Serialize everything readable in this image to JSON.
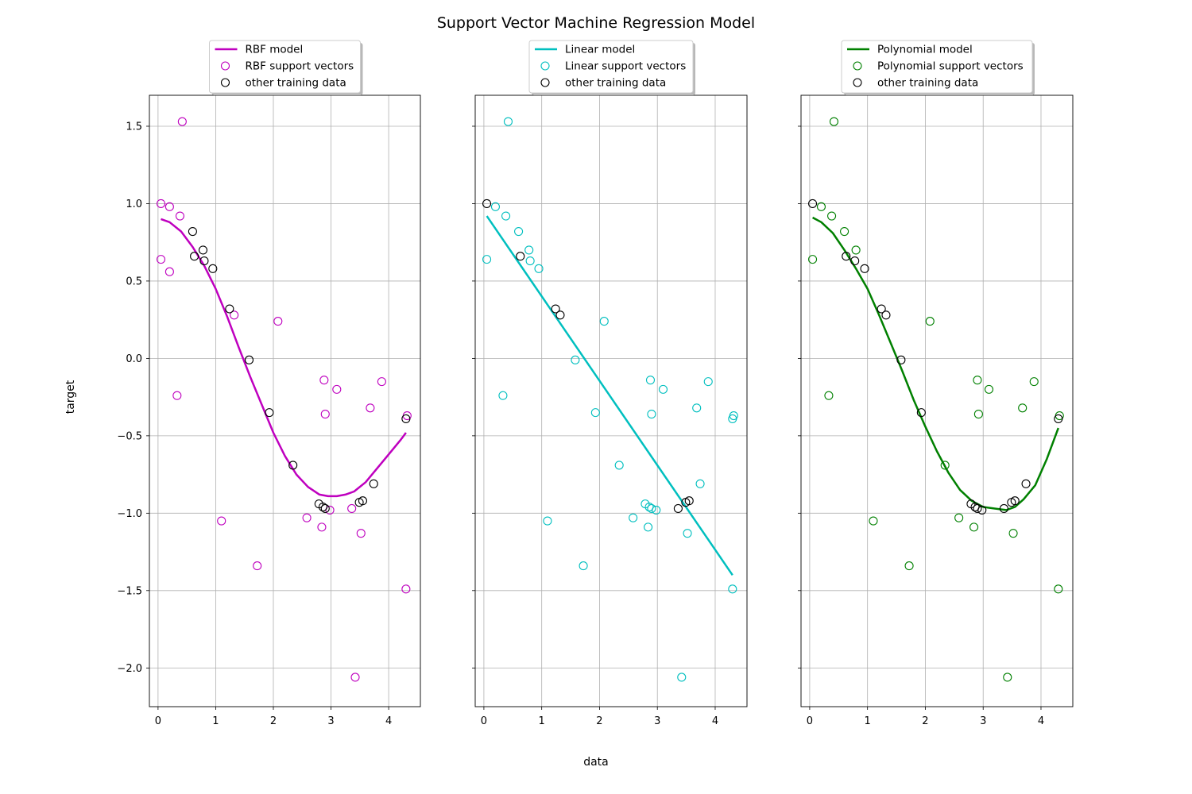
{
  "figure": {
    "title": "Support Vector Machine Regression Model",
    "xlabel": "data",
    "ylabel": "target"
  },
  "colors": {
    "rbf": "#bf00bf",
    "linear": "#00bfbf",
    "poly": "#008000",
    "other": "#000000",
    "grid": "#b0b0b0"
  },
  "chart_data": [
    {
      "type": "scatter",
      "model_color": "#bf00bf",
      "xlim": [
        -0.15,
        4.55
      ],
      "ylim": [
        -2.25,
        1.7
      ],
      "xticks": [
        0,
        1,
        2,
        3,
        4
      ],
      "yticks": [
        -2.0,
        -1.5,
        -1.0,
        -0.5,
        0.0,
        0.5,
        1.0,
        1.5
      ],
      "xtick_labels": [
        "0",
        "1",
        "2",
        "3",
        "4"
      ],
      "ytick_labels": [
        "−2.0",
        "−1.5",
        "−1.0",
        "−0.5",
        "0.0",
        "0.5",
        "1.0",
        "1.5"
      ],
      "show_ytick_labels": true,
      "grid": true,
      "legend_position": "top-center",
      "legend": [
        "RBF model",
        "RBF support vectors",
        "other training data"
      ],
      "model_line": {
        "name": "RBF model",
        "x": [
          0.05,
          0.2,
          0.4,
          0.6,
          0.8,
          1.0,
          1.2,
          1.4,
          1.6,
          1.8,
          2.0,
          2.2,
          2.4,
          2.6,
          2.8,
          2.95,
          3.1,
          3.25,
          3.4,
          3.6,
          3.8,
          4.0,
          4.2,
          4.3
        ],
        "y": [
          0.9,
          0.88,
          0.82,
          0.72,
          0.6,
          0.45,
          0.27,
          0.07,
          -0.12,
          -0.3,
          -0.48,
          -0.63,
          -0.75,
          -0.83,
          -0.88,
          -0.89,
          -0.89,
          -0.88,
          -0.86,
          -0.8,
          -0.71,
          -0.62,
          -0.53,
          -0.48
        ]
      },
      "support_vectors": {
        "x": [
          0.05,
          0.05,
          0.2,
          0.2,
          0.33,
          0.38,
          0.42,
          1.1,
          1.32,
          1.72,
          2.08,
          2.58,
          2.84,
          2.88,
          2.9,
          2.98,
          3.1,
          3.36,
          3.42,
          3.52,
          3.68,
          3.88,
          4.3,
          4.32
        ],
        "y": [
          1.0,
          0.64,
          0.98,
          0.56,
          -0.24,
          0.92,
          1.53,
          -1.05,
          0.28,
          -1.34,
          0.24,
          -1.03,
          -1.09,
          -0.14,
          -0.36,
          -0.98,
          -0.2,
          -0.97,
          -2.06,
          -1.13,
          -0.32,
          -0.15,
          -1.49,
          -0.37
        ]
      },
      "other_data": {
        "x": [
          0.6,
          0.63,
          0.78,
          0.8,
          0.95,
          1.24,
          1.58,
          1.93,
          2.34,
          2.79,
          2.86,
          2.9,
          3.49,
          3.55,
          3.74,
          4.3
        ],
        "y": [
          0.82,
          0.66,
          0.7,
          0.63,
          0.58,
          0.32,
          -0.01,
          -0.35,
          -0.69,
          -0.94,
          -0.96,
          -0.97,
          -0.93,
          -0.92,
          -0.81,
          -0.39
        ]
      }
    },
    {
      "type": "scatter",
      "model_color": "#00bfbf",
      "xlim": [
        -0.15,
        4.55
      ],
      "ylim": [
        -2.25,
        1.7
      ],
      "xticks": [
        0,
        1,
        2,
        3,
        4
      ],
      "yticks": [
        -2.0,
        -1.5,
        -1.0,
        -0.5,
        0.0,
        0.5,
        1.0,
        1.5
      ],
      "xtick_labels": [
        "0",
        "1",
        "2",
        "3",
        "4"
      ],
      "show_ytick_labels": false,
      "grid": true,
      "legend_position": "top-center",
      "legend": [
        "Linear model",
        "Linear support vectors",
        "other training data"
      ],
      "model_line": {
        "name": "Linear model",
        "x": [
          0.05,
          4.3
        ],
        "y": [
          0.92,
          -1.4
        ]
      },
      "support_vectors": {
        "x": [
          0.05,
          0.2,
          0.33,
          0.38,
          0.42,
          0.6,
          0.78,
          0.8,
          0.95,
          1.1,
          1.58,
          1.72,
          1.93,
          2.08,
          2.34,
          2.58,
          2.79,
          2.84,
          2.86,
          2.88,
          2.9,
          2.9,
          2.98,
          3.1,
          3.42,
          3.52,
          3.68,
          3.74,
          3.88,
          4.3,
          4.3,
          4.32
        ],
        "y": [
          0.64,
          0.98,
          -0.24,
          0.92,
          1.53,
          0.82,
          0.7,
          0.63,
          0.58,
          -1.05,
          -0.01,
          -1.34,
          -0.35,
          0.24,
          -0.69,
          -1.03,
          -0.94,
          -1.09,
          -0.96,
          -0.14,
          -0.36,
          -0.97,
          -0.98,
          -0.2,
          -2.06,
          -1.13,
          -0.32,
          -0.81,
          -0.15,
          -1.49,
          -0.39,
          -0.37
        ]
      },
      "other_data": {
        "x": [
          0.05,
          0.63,
          1.24,
          1.32,
          3.36,
          3.49,
          3.55
        ],
        "y": [
          1.0,
          0.66,
          0.32,
          0.28,
          -0.97,
          -0.93,
          -0.92
        ]
      }
    },
    {
      "type": "scatter",
      "model_color": "#008000",
      "xlim": [
        -0.15,
        4.55
      ],
      "ylim": [
        -2.25,
        1.7
      ],
      "xticks": [
        0,
        1,
        2,
        3,
        4
      ],
      "yticks": [
        -2.0,
        -1.5,
        -1.0,
        -0.5,
        0.0,
        0.5,
        1.0,
        1.5
      ],
      "xtick_labels": [
        "0",
        "1",
        "2",
        "3",
        "4"
      ],
      "show_ytick_labels": false,
      "grid": true,
      "legend_position": "top-center",
      "legend": [
        "Polynomial model",
        "Polynomial support vectors",
        "other training data"
      ],
      "model_line": {
        "name": "Polynomial model",
        "x": [
          0.05,
          0.2,
          0.4,
          0.6,
          0.8,
          1.0,
          1.2,
          1.4,
          1.6,
          1.8,
          2.0,
          2.2,
          2.4,
          2.6,
          2.8,
          3.0,
          3.2,
          3.4,
          3.55,
          3.7,
          3.9,
          4.1,
          4.3
        ],
        "y": [
          0.91,
          0.88,
          0.81,
          0.7,
          0.58,
          0.45,
          0.28,
          0.1,
          -0.08,
          -0.27,
          -0.44,
          -0.6,
          -0.74,
          -0.85,
          -0.92,
          -0.96,
          -0.97,
          -0.98,
          -0.96,
          -0.91,
          -0.82,
          -0.65,
          -0.45
        ]
      },
      "support_vectors": {
        "x": [
          0.05,
          0.2,
          0.33,
          0.38,
          0.42,
          0.6,
          0.8,
          1.1,
          1.72,
          2.08,
          2.34,
          2.58,
          2.84,
          2.9,
          2.92,
          3.1,
          3.42,
          3.52,
          3.68,
          3.88,
          4.3,
          4.32
        ],
        "y": [
          0.64,
          0.98,
          -0.24,
          0.92,
          1.53,
          0.82,
          0.7,
          -1.05,
          -1.34,
          0.24,
          -0.69,
          -1.03,
          -1.09,
          -0.14,
          -0.36,
          -0.2,
          -2.06,
          -1.13,
          -0.32,
          -0.15,
          -1.49,
          -0.37
        ]
      },
      "other_data": {
        "x": [
          0.05,
          0.63,
          0.78,
          0.95,
          1.24,
          1.32,
          1.58,
          1.93,
          2.79,
          2.86,
          2.9,
          2.98,
          3.36,
          3.49,
          3.55,
          3.74,
          4.3
        ],
        "y": [
          1.0,
          0.66,
          0.63,
          0.58,
          0.32,
          0.28,
          -0.01,
          -0.35,
          -0.94,
          -0.96,
          -0.97,
          -0.98,
          -0.97,
          -0.93,
          -0.92,
          -0.81,
          -0.39
        ]
      }
    }
  ]
}
